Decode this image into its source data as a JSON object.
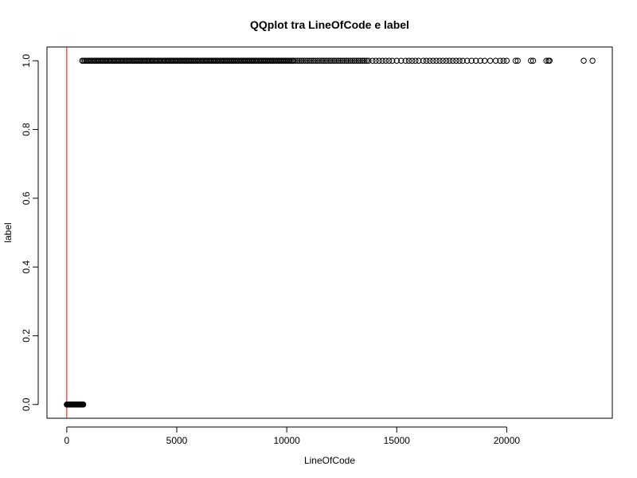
{
  "chart_data": {
    "type": "scatter",
    "title": "QQplot tra LineOfCode e label",
    "xlabel": "LineOfCode",
    "ylabel": "label",
    "xlim": [
      -900,
      24800
    ],
    "ylim": [
      -0.04,
      1.04
    ],
    "x_ticks": [
      0,
      5000,
      10000,
      15000,
      20000
    ],
    "y_ticks": [
      0.0,
      0.2,
      0.4,
      0.6,
      0.8,
      1.0
    ],
    "x_tick_labels": [
      "0",
      "5000",
      "10000",
      "15000",
      "20000"
    ],
    "y_tick_labels": [
      "0.0",
      "0.2",
      "0.4",
      "0.6",
      "0.8",
      "1.0"
    ],
    "grid": false,
    "legend": "none",
    "colors": {
      "points": "#000000",
      "reference_line": "#ff0000",
      "frame": "#000000"
    },
    "reference_line": {
      "type": "vertical",
      "x": 0
    },
    "series": [
      {
        "label_value": 0,
        "points_x": [
          0,
          30,
          60,
          90,
          120,
          150,
          180,
          210,
          240,
          270,
          300,
          330,
          360,
          390,
          420,
          450,
          480,
          510,
          540,
          570,
          600,
          630,
          660,
          690,
          720,
          750
        ],
        "points_y": [
          0,
          0,
          0,
          0,
          0,
          0,
          0,
          0,
          0,
          0,
          0,
          0,
          0,
          0,
          0,
          0,
          0,
          0,
          0,
          0,
          0,
          0,
          0,
          0,
          0,
          0
        ]
      },
      {
        "label_value": 1,
        "dense_range": [
          700,
          10300
        ],
        "dense_step": 60,
        "medium_range": [
          10300,
          13800
        ],
        "medium_step": 90,
        "sparse_x": [
          13900,
          14050,
          14200,
          14350,
          14500,
          14650,
          14800,
          15000,
          15200,
          15400,
          15550,
          15700,
          15850,
          16000,
          16200,
          16350,
          16500,
          16650,
          16800,
          16950,
          17100,
          17250,
          17400,
          17550,
          17700,
          17850,
          18000,
          18200,
          18400,
          18600,
          18800,
          19000,
          19250,
          19500,
          19700,
          19850,
          20000,
          20400,
          20500,
          21100,
          21200,
          21800,
          21900,
          21950,
          23500,
          23900
        ],
        "y": 1
      }
    ]
  }
}
